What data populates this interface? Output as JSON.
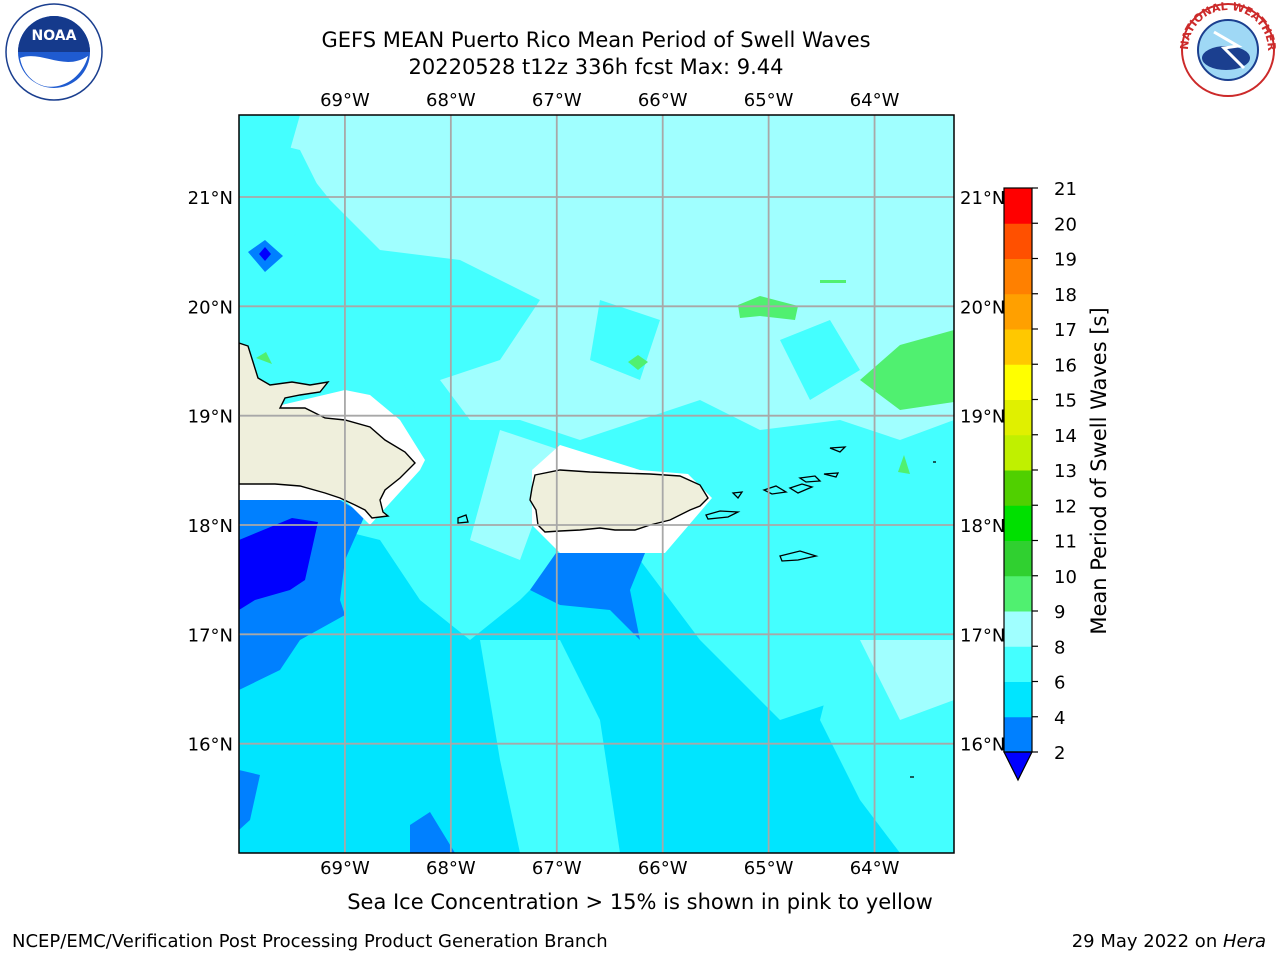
{
  "title_line1": "GEFS MEAN Puerto Rico Mean Period of Swell Waves",
  "title_line2": "20220528 t12z 336h fcst   Max: 9.44",
  "note": "Sea Ice Concentration > 15% is shown in pink to yellow",
  "footer_left": "NCEP/EMC/Verification Post Processing Product Generation Branch",
  "footer_date": "29 May 2022 on ",
  "footer_machine": "Hera",
  "logos": {
    "left": "NOAA",
    "right_ring": "NATIONAL WEATHER SERVICE"
  },
  "map": {
    "lon_labels": [
      "69°W",
      "68°W",
      "67°W",
      "66°W",
      "65°W",
      "64°W"
    ],
    "lat_labels": [
      "21°N",
      "20°N",
      "19°N",
      "18°N",
      "17°N",
      "16°N"
    ],
    "lon_values": [
      -69,
      -68,
      -67,
      -66,
      -65,
      -64
    ],
    "lat_values": [
      21,
      20,
      19,
      18,
      17,
      16
    ],
    "extent": {
      "lon_min": -70,
      "lon_max": -63.25,
      "lat_min": 15,
      "lat_max": 21.75
    }
  },
  "colorbar": {
    "label": "Mean Period of Swell Waves [s]",
    "ticks": [
      "21",
      "20",
      "19",
      "18",
      "17",
      "16",
      "15",
      "14",
      "13",
      "12",
      "11",
      "10",
      "9",
      "8",
      "6",
      "4",
      "2"
    ],
    "bins_bottom_to_top": [
      {
        "from": 2,
        "to": 4,
        "color": "#0080ff"
      },
      {
        "from": 4,
        "to": 6,
        "color": "#00e5ff"
      },
      {
        "from": 6,
        "to": 8,
        "color": "#44ffff"
      },
      {
        "from": 8,
        "to": 9,
        "color": "#a0ffff"
      },
      {
        "from": 9,
        "to": 10,
        "color": "#50f070"
      },
      {
        "from": 10,
        "to": 11,
        "color": "#30d030"
      },
      {
        "from": 11,
        "to": 12,
        "color": "#00e000"
      },
      {
        "from": 12,
        "to": 13,
        "color": "#50d000"
      },
      {
        "from": 13,
        "to": 14,
        "color": "#c0f000"
      },
      {
        "from": 14,
        "to": 15,
        "color": "#e0f000"
      },
      {
        "from": 15,
        "to": 16,
        "color": "#ffff00"
      },
      {
        "from": 16,
        "to": 17,
        "color": "#ffc800"
      },
      {
        "from": 17,
        "to": 18,
        "color": "#ffa000"
      },
      {
        "from": 18,
        "to": 19,
        "color": "#ff8000"
      },
      {
        "from": 19,
        "to": 20,
        "color": "#ff5000"
      },
      {
        "from": 20,
        "to": 21,
        "color": "#ff0000"
      }
    ],
    "under_color": "#0000ff"
  }
}
